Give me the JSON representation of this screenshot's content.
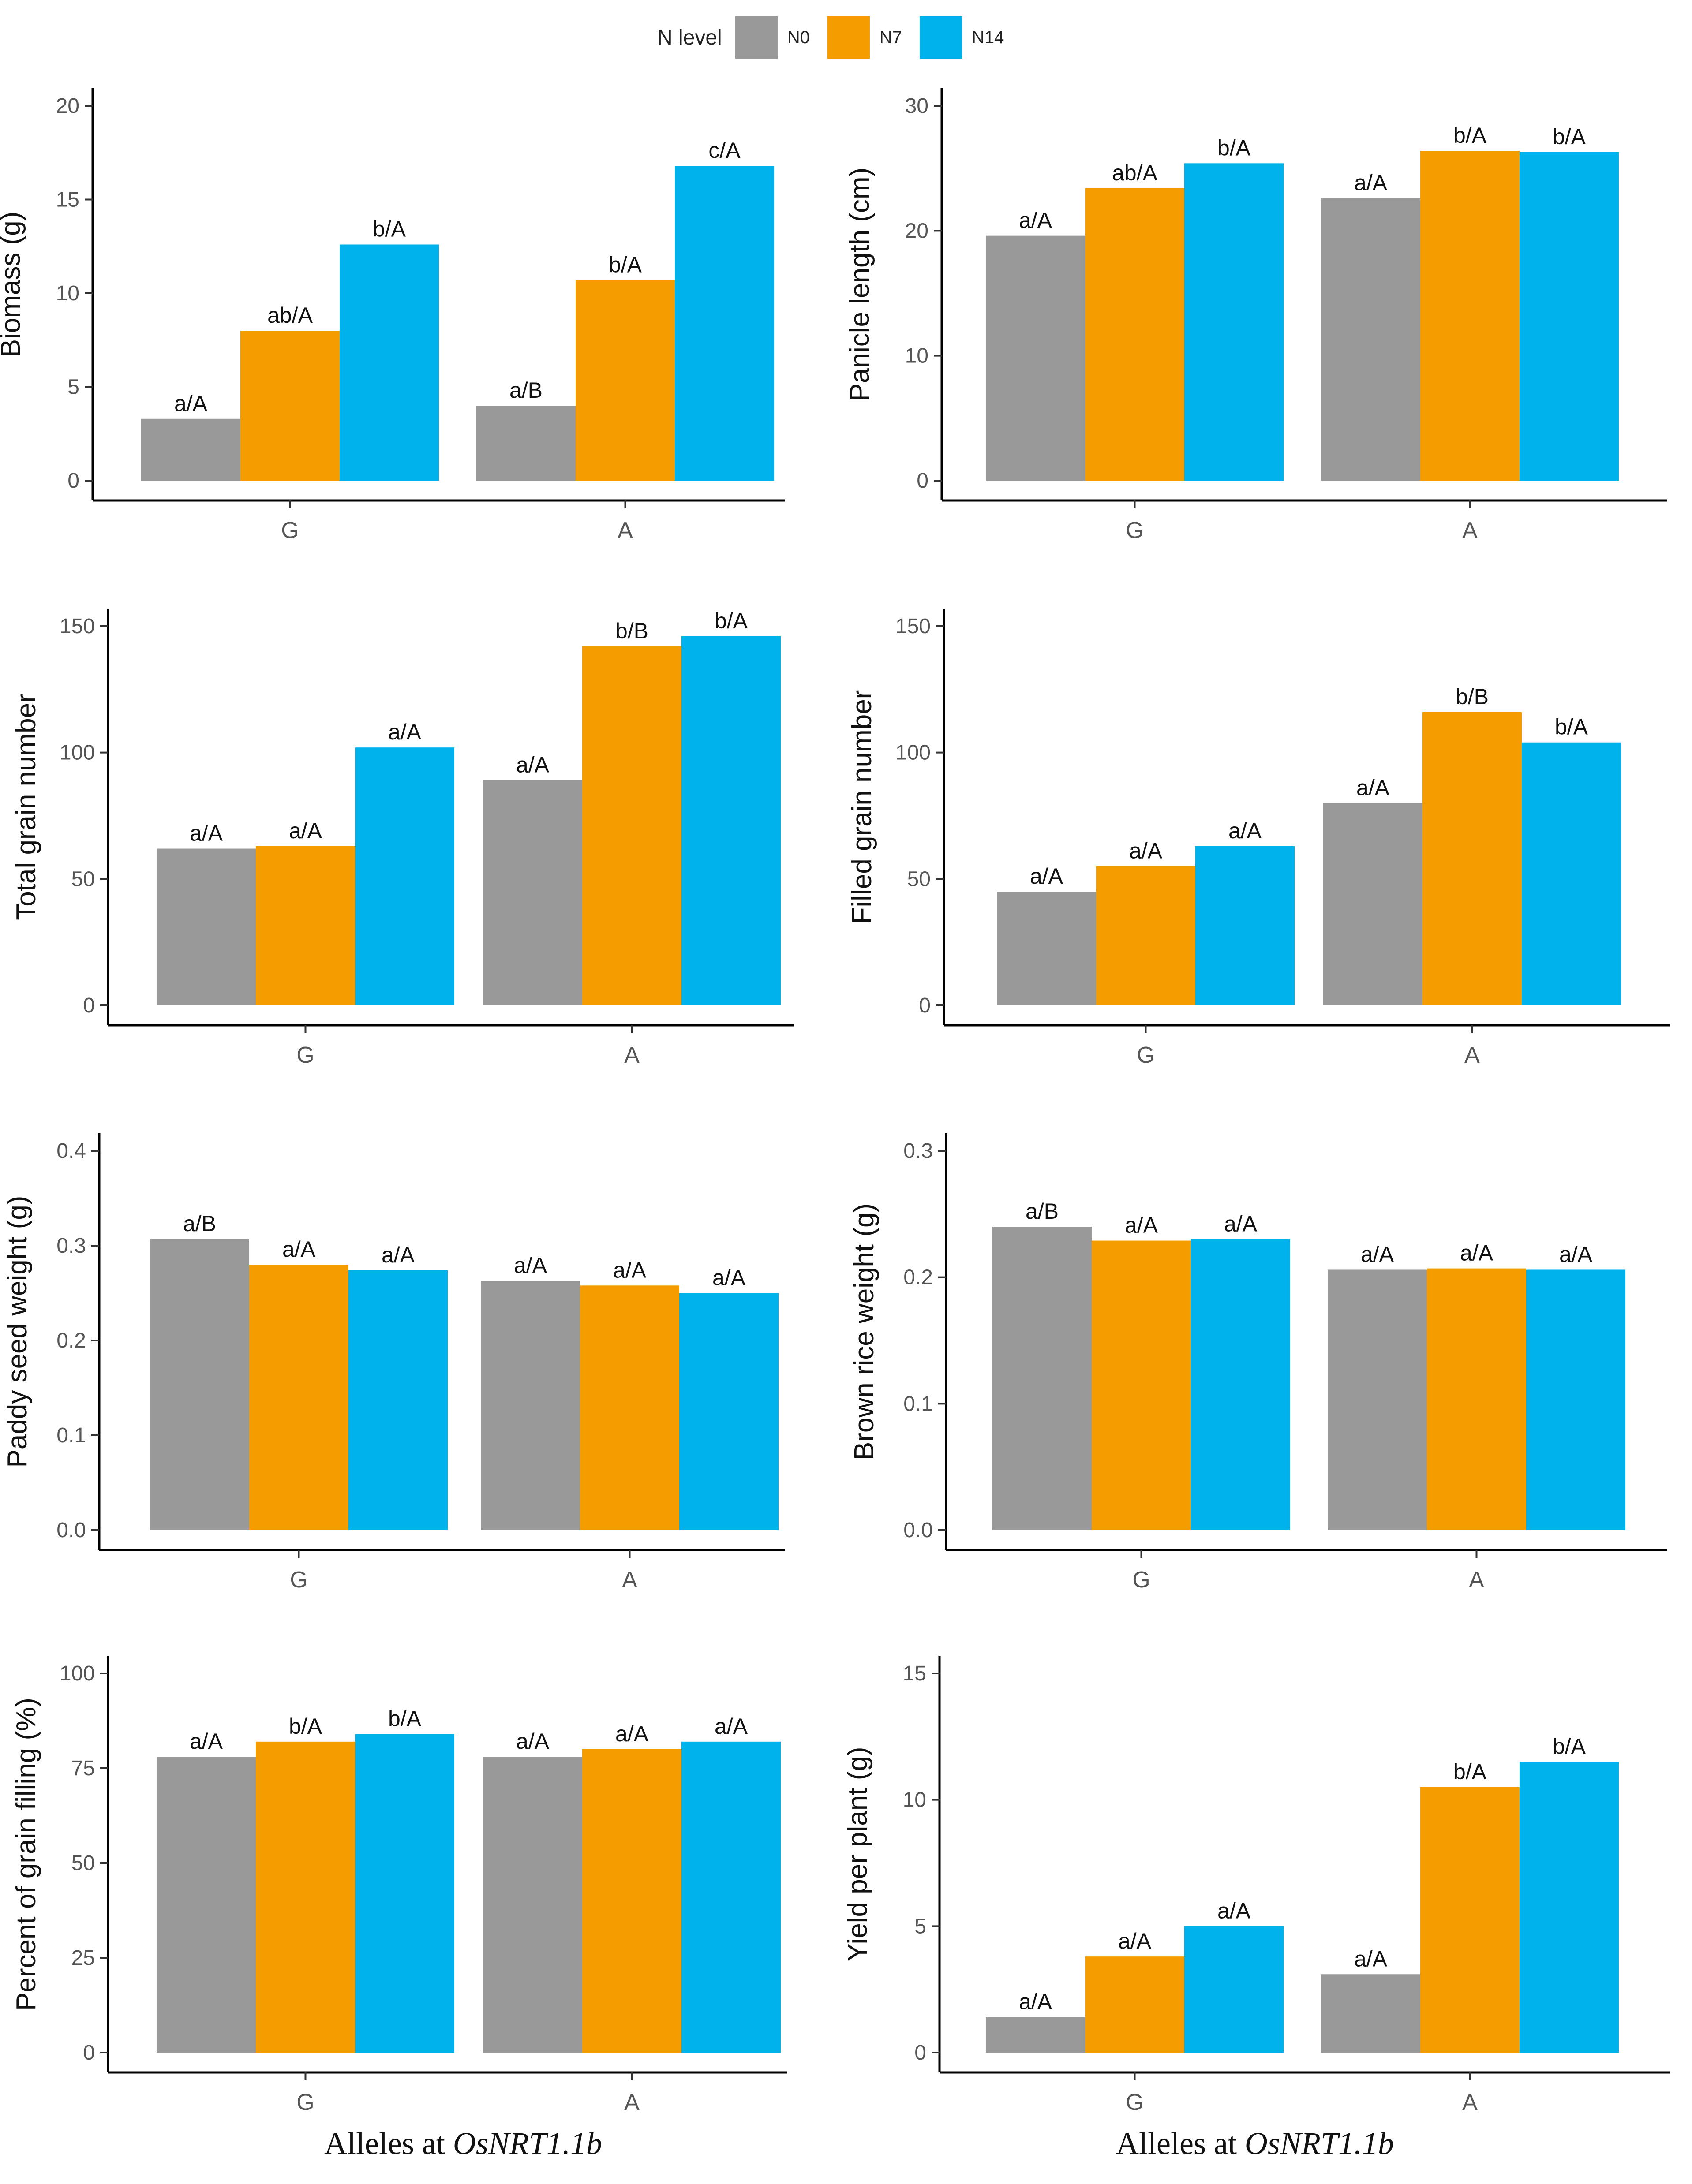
{
  "legend": {
    "title": "N level",
    "items": [
      {
        "label": "N0",
        "color": "#999999"
      },
      {
        "label": "N7",
        "color": "#F59C00"
      },
      {
        "label": "N14",
        "color": "#00B2EB"
      }
    ]
  },
  "footer": {
    "left_prefix": "Alleles at ",
    "left_gene": "OsNRT1.1b",
    "right_prefix": "Alleles at ",
    "right_gene": "OsNRT1.1b"
  },
  "chart_data": [
    {
      "type": "bar",
      "ylabel": "Biomass (g)",
      "categories": [
        "G",
        "A"
      ],
      "ylim": [
        0,
        20
      ],
      "yticks": [
        0,
        5,
        10,
        15,
        20
      ],
      "series": [
        {
          "name": "N0",
          "values": [
            3.3,
            4.0
          ],
          "labels": [
            "a/A",
            "a/B"
          ]
        },
        {
          "name": "N7",
          "values": [
            8.0,
            10.7
          ],
          "labels": [
            "ab/A",
            "b/A"
          ]
        },
        {
          "name": "N14",
          "values": [
            12.6,
            16.8
          ],
          "labels": [
            "b/A",
            "c/A"
          ]
        }
      ]
    },
    {
      "type": "bar",
      "ylabel": "Panicle length (cm)",
      "categories": [
        "G",
        "A"
      ],
      "ylim": [
        0,
        30
      ],
      "yticks": [
        0,
        10,
        20,
        30
      ],
      "series": [
        {
          "name": "N0",
          "values": [
            19.6,
            22.6
          ],
          "labels": [
            "a/A",
            "a/A"
          ]
        },
        {
          "name": "N7",
          "values": [
            23.4,
            26.4
          ],
          "labels": [
            "ab/A",
            "b/A"
          ]
        },
        {
          "name": "N14",
          "values": [
            25.4,
            26.3
          ],
          "labels": [
            "b/A",
            "b/A"
          ]
        }
      ]
    },
    {
      "type": "bar",
      "ylabel": "Total grain number",
      "categories": [
        "G",
        "A"
      ],
      "ylim": [
        0,
        150
      ],
      "yticks": [
        0,
        50,
        100,
        150
      ],
      "series": [
        {
          "name": "N0",
          "values": [
            62,
            89
          ],
          "labels": [
            "a/A",
            "a/A"
          ]
        },
        {
          "name": "N7",
          "values": [
            63,
            142
          ],
          "labels": [
            "a/A",
            "b/B"
          ]
        },
        {
          "name": "N14",
          "values": [
            102,
            146
          ],
          "labels": [
            "a/A",
            "b/A"
          ]
        }
      ]
    },
    {
      "type": "bar",
      "ylabel": "Filled grain number",
      "categories": [
        "G",
        "A"
      ],
      "ylim": [
        0,
        150
      ],
      "yticks": [
        0,
        50,
        100,
        150
      ],
      "series": [
        {
          "name": "N0",
          "values": [
            45,
            80
          ],
          "labels": [
            "a/A",
            "a/A"
          ]
        },
        {
          "name": "N7",
          "values": [
            55,
            116
          ],
          "labels": [
            "a/A",
            "b/B"
          ]
        },
        {
          "name": "N14",
          "values": [
            63,
            104
          ],
          "labels": [
            "a/A",
            "b/A"
          ]
        }
      ]
    },
    {
      "type": "bar",
      "ylabel": "Paddy seed weight (g)",
      "categories": [
        "G",
        "A"
      ],
      "ylim": [
        0,
        0.4
      ],
      "yticks": [
        0.0,
        0.1,
        0.2,
        0.3,
        0.4
      ],
      "ytick_labels": [
        "0.0",
        "0.1",
        "0.2",
        "0.3",
        "0.4"
      ],
      "series": [
        {
          "name": "N0",
          "values": [
            0.307,
            0.263
          ],
          "labels": [
            "a/B",
            "a/A"
          ]
        },
        {
          "name": "N7",
          "values": [
            0.28,
            0.258
          ],
          "labels": [
            "a/A",
            "a/A"
          ]
        },
        {
          "name": "N14",
          "values": [
            0.274,
            0.25
          ],
          "labels": [
            "a/A",
            "a/A"
          ]
        }
      ]
    },
    {
      "type": "bar",
      "ylabel": "Brown rice weight (g)",
      "categories": [
        "G",
        "A"
      ],
      "ylim": [
        0,
        0.3
      ],
      "yticks": [
        0.0,
        0.1,
        0.2,
        0.3
      ],
      "ytick_labels": [
        "0.0",
        "0.1",
        "0.2",
        "0.3"
      ],
      "series": [
        {
          "name": "N0",
          "values": [
            0.24,
            0.206
          ],
          "labels": [
            "a/B",
            "a/A"
          ]
        },
        {
          "name": "N7",
          "values": [
            0.229,
            0.207
          ],
          "labels": [
            "a/A",
            "a/A"
          ]
        },
        {
          "name": "N14",
          "values": [
            0.23,
            0.206
          ],
          "labels": [
            "a/A",
            "a/A"
          ]
        }
      ]
    },
    {
      "type": "bar",
      "ylabel": "Percent of grain filling (%)",
      "categories": [
        "G",
        "A"
      ],
      "ylim": [
        0,
        100
      ],
      "yticks": [
        0,
        25,
        50,
        75,
        100
      ],
      "series": [
        {
          "name": "N0",
          "values": [
            78,
            78
          ],
          "labels": [
            "a/A",
            "a/A"
          ]
        },
        {
          "name": "N7",
          "values": [
            82,
            80
          ],
          "labels": [
            "b/A",
            "a/A"
          ]
        },
        {
          "name": "N14",
          "values": [
            84,
            82
          ],
          "labels": [
            "b/A",
            "a/A"
          ]
        }
      ]
    },
    {
      "type": "bar",
      "ylabel": "Yield per plant (g)",
      "categories": [
        "G",
        "A"
      ],
      "ylim": [
        0,
        15
      ],
      "yticks": [
        0,
        5,
        10,
        15
      ],
      "series": [
        {
          "name": "N0",
          "values": [
            1.4,
            3.1
          ],
          "labels": [
            "a/A",
            "a/A"
          ]
        },
        {
          "name": "N7",
          "values": [
            3.8,
            10.5
          ],
          "labels": [
            "a/A",
            "b/A"
          ]
        },
        {
          "name": "N14",
          "values": [
            5.0,
            11.5
          ],
          "labels": [
            "a/A",
            "b/A"
          ]
        }
      ]
    }
  ]
}
